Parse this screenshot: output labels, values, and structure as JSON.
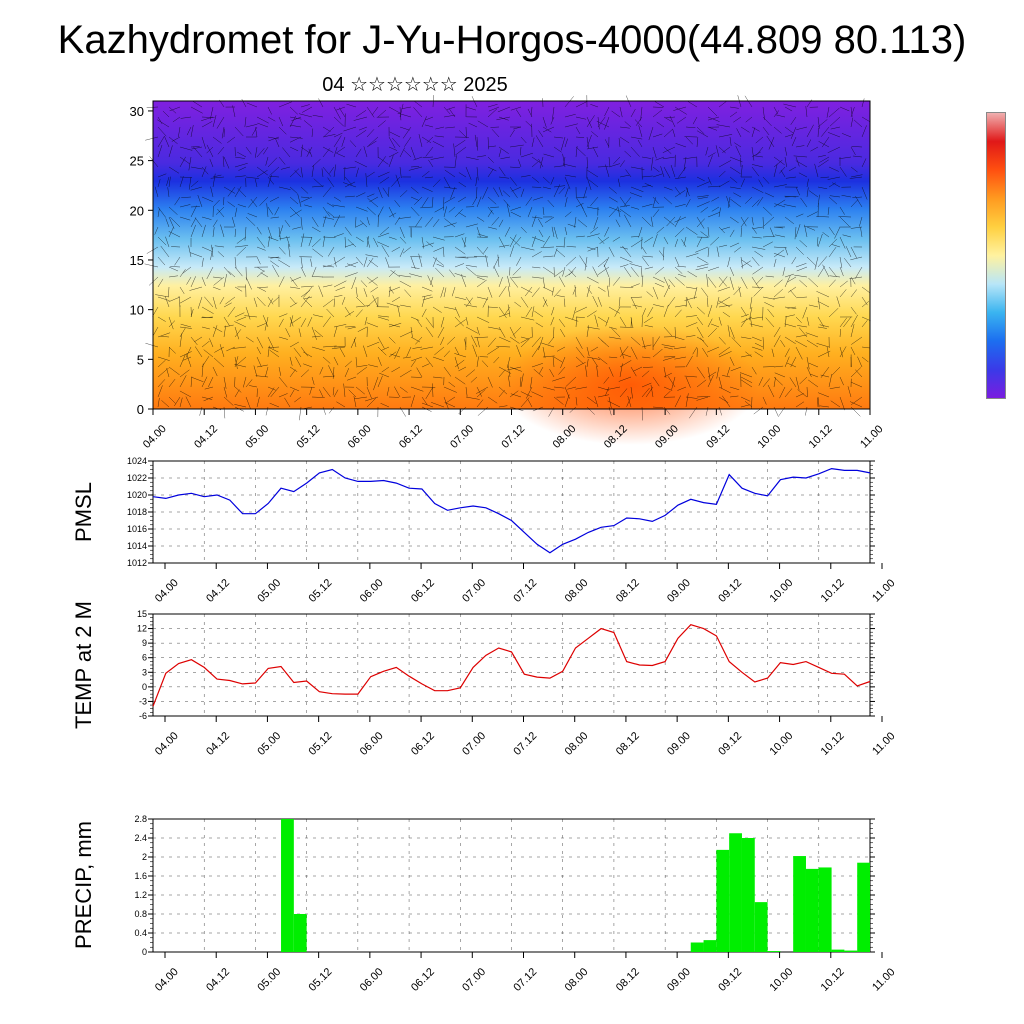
{
  "title": "Kazhydromet for J-Yu-Horgos-4000(44.809 80.113)",
  "subtitle": "04 ☆☆☆☆☆☆ 2025",
  "colors": {
    "pmsl_line": "#0000dd",
    "temp_line": "#dd0000",
    "precip_bar": "#00ee00",
    "colorbar_gradient": [
      "#7a1de0",
      "#3a3ae8",
      "#1c6ef0",
      "#3ab4f0",
      "#b8e6f8",
      "#fff2a0",
      "#ffd040",
      "#ff9a20",
      "#ff5010",
      "#e01818",
      "#f0b0b0"
    ]
  },
  "time_ticks": [
    "04.00",
    "04.12",
    "05.00",
    "05.12",
    "06.00",
    "06.12",
    "07.00",
    "07.12",
    "08.00",
    "08.12",
    "09.00",
    "09.12",
    "10.00",
    "10.12",
    "11.00"
  ],
  "chart_data": [
    {
      "type": "heatmap",
      "title": "",
      "xlabel": "",
      "ylabel": "",
      "x": "time_ticks",
      "ylim": [
        0,
        31
      ],
      "yticks": [
        0,
        5,
        10,
        15,
        20,
        25,
        30
      ],
      "description_note": "",
      "field": "cross-section shaded field with wind barbs",
      "color_bands": [
        {
          "level_range": [
            0,
            13
          ],
          "color": "yellow-orange (warmest near surface mid-period)"
        },
        {
          "level_range": [
            13,
            22
          ],
          "color": "light blue to blue"
        },
        {
          "level_range": [
            22,
            31
          ],
          "color": "blue to purple"
        }
      ]
    },
    {
      "type": "line",
      "ylabel": "PMSL",
      "ylim": [
        1012,
        1024
      ],
      "yticks": [
        1012,
        1014,
        1016,
        1018,
        1020,
        1022,
        1024
      ],
      "x_hours": [
        0,
        3,
        6,
        9,
        12,
        15,
        18,
        21,
        24,
        27,
        30,
        33,
        36,
        39,
        42,
        45,
        48,
        51,
        54,
        57,
        60,
        63,
        66,
        69,
        72,
        75,
        78,
        81,
        84,
        87,
        90,
        93,
        96,
        99,
        102,
        105,
        108,
        111,
        114,
        117,
        120,
        123,
        126,
        129,
        132,
        135,
        138,
        141,
        144,
        147,
        150,
        153,
        156,
        159,
        162,
        165,
        168
      ],
      "series": [
        {
          "values": [
            1019.8,
            1019.6,
            1020.0,
            1020.2,
            1019.8,
            1020.0,
            1019.4,
            1017.8,
            1017.8,
            1019.0,
            1020.8,
            1020.4,
            1021.4,
            1022.6,
            1023.0,
            1022.0,
            1021.6,
            1021.6,
            1021.7,
            1021.4,
            1020.8,
            1020.7,
            1019.0,
            1018.2,
            1018.5,
            1018.7,
            1018.5,
            1017.8,
            1017.0,
            1015.6,
            1014.2,
            1013.2,
            1014.2,
            1014.8,
            1015.6,
            1016.2,
            1016.4,
            1017.3,
            1017.2,
            1016.9,
            1017.6,
            1018.8,
            1019.5,
            1019.1,
            1018.9,
            1022.4,
            1020.8,
            1020.2,
            1019.9,
            1021.8,
            1022.1,
            1022.0,
            1022.5,
            1023.1,
            1022.9,
            1022.9,
            1022.6
          ]
        }
      ]
    },
    {
      "type": "line",
      "ylabel": "TEMP at 2 M",
      "ylim": [
        -6,
        15
      ],
      "yticks": [
        -6,
        -3,
        0,
        3,
        6,
        9,
        12,
        15
      ],
      "x_hours": [
        0,
        3,
        6,
        9,
        12,
        15,
        18,
        21,
        24,
        27,
        30,
        33,
        36,
        39,
        42,
        45,
        48,
        51,
        54,
        57,
        60,
        63,
        66,
        69,
        72,
        75,
        78,
        81,
        84,
        87,
        90,
        93,
        96,
        99,
        102,
        105,
        108,
        111,
        114,
        117,
        120,
        123,
        126,
        129,
        132,
        135,
        138,
        141,
        144,
        147,
        150,
        153,
        156,
        159,
        162,
        165,
        168
      ],
      "series": [
        {
          "values": [
            -4.0,
            2.8,
            4.8,
            5.6,
            4.0,
            1.6,
            1.3,
            0.6,
            0.8,
            3.8,
            4.2,
            0.9,
            1.2,
            -1.0,
            -1.4,
            -1.5,
            -1.5,
            2.1,
            3.2,
            4.0,
            2.2,
            0.6,
            -0.8,
            -0.8,
            -0.2,
            4.0,
            6.5,
            8.0,
            7.2,
            2.6,
            2.0,
            1.8,
            3.2,
            8.0,
            10.0,
            12.0,
            11.2,
            5.2,
            4.5,
            4.4,
            5.2,
            10.0,
            12.8,
            12.0,
            10.5,
            5.2,
            3.0,
            1.0,
            1.8,
            5.0,
            4.6,
            5.2,
            4.0,
            2.8,
            2.6,
            0.2,
            1.1
          ]
        }
      ]
    },
    {
      "type": "bar",
      "ylabel": "PRECIP, mm",
      "ylim": [
        0,
        2.8
      ],
      "yticks": [
        0.0,
        0.4,
        0.8,
        1.2,
        1.6,
        2.0,
        2.4,
        2.8
      ],
      "bar_width_hours": 3,
      "x_hours": [
        30,
        33,
        126,
        129,
        132,
        135,
        138,
        141,
        144,
        150,
        153,
        156,
        159,
        162,
        165
      ],
      "values": [
        2.8,
        0.8,
        0.2,
        0.25,
        2.15,
        2.5,
        2.4,
        1.05,
        0.02,
        2.02,
        1.75,
        1.78,
        0.05,
        0.03,
        1.88
      ]
    }
  ]
}
